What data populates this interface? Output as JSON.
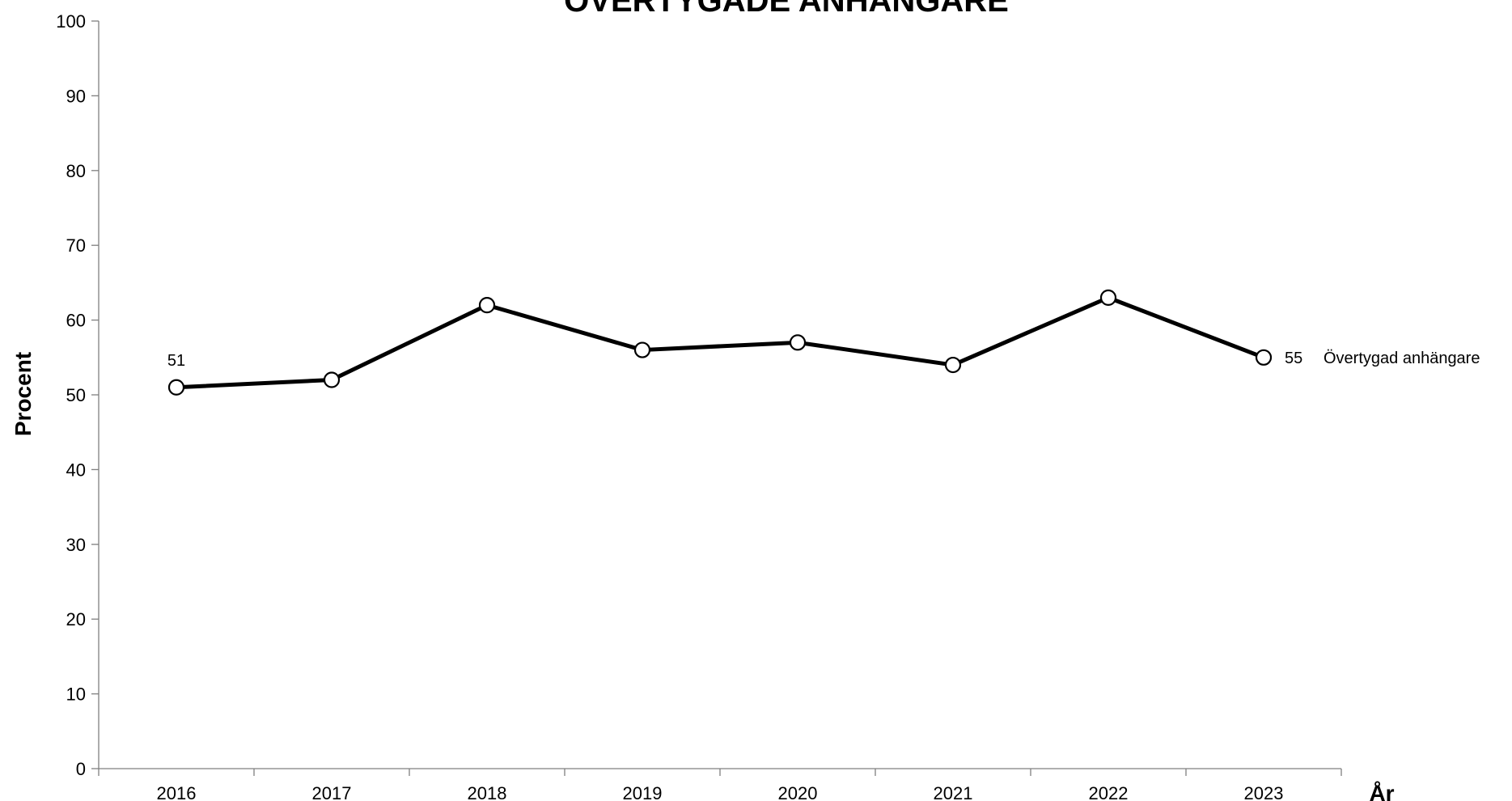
{
  "chart_data": {
    "type": "line",
    "title": "ÖVERTYGADE ANHÄNGARE",
    "xlabel": "År",
    "ylabel": "Procent",
    "categories": [
      "2016",
      "2017",
      "2018",
      "2019",
      "2020",
      "2021",
      "2022",
      "2023"
    ],
    "series": [
      {
        "name": "Övertygad anhängare",
        "values": [
          51,
          52,
          62,
          56,
          57,
          54,
          63,
          55
        ]
      }
    ],
    "labeled_points": {
      "first": "51",
      "last": "55"
    },
    "ylim": [
      0,
      100
    ],
    "yticks": [
      0,
      10,
      20,
      30,
      40,
      50,
      60,
      70,
      80,
      90,
      100
    ],
    "grid": false,
    "line_color": "#000000",
    "marker_fill": "#ffffff"
  }
}
